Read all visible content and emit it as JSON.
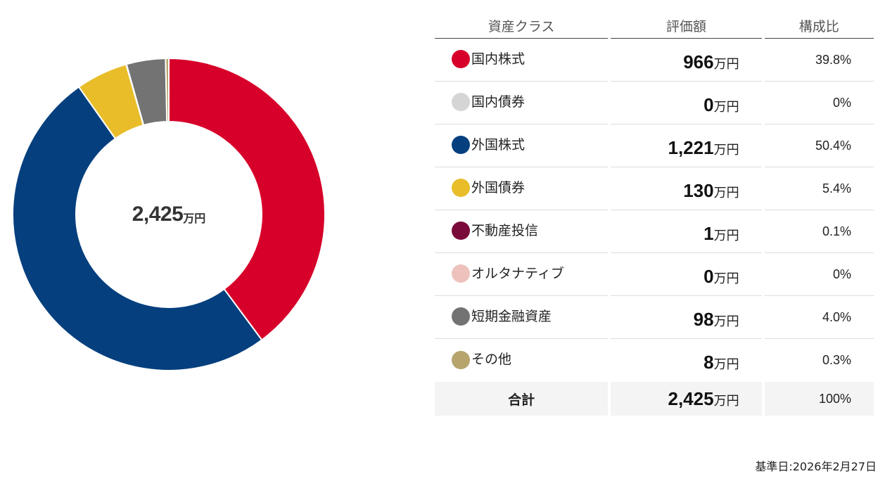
{
  "chart_data": {
    "type": "pie",
    "subtype": "donut",
    "title": "",
    "center_label": {
      "value": "2,425",
      "unit": "万円"
    },
    "unit": "万円",
    "categories": [
      "国内株式",
      "国内債券",
      "外国株式",
      "外国債券",
      "不動産投信",
      "オルタナティブ",
      "短期金融資産",
      "その他"
    ],
    "values": [
      966,
      0,
      1221,
      130,
      1,
      0,
      98,
      8
    ],
    "percentages": [
      39.8,
      0,
      50.4,
      5.4,
      0.1,
      0,
      4.0,
      0.3
    ],
    "colors": [
      "#d7002a",
      "#d5d5d5",
      "#053f7e",
      "#e8bd29",
      "#7a0a3a",
      "#edc2bd",
      "#737373",
      "#b5a46c"
    ],
    "start_angle": "12 o'clock",
    "direction": "clockwise",
    "legend_position": "right (table)"
  },
  "table": {
    "headers": {
      "name": "資産クラス",
      "value": "評価額",
      "ratio": "構成比"
    },
    "rows": [
      {
        "name": "国内株式",
        "value": "966",
        "unit": "万円",
        "ratio": "39.8%",
        "color": "#d7002a"
      },
      {
        "name": "国内債券",
        "value": "0",
        "unit": "万円",
        "ratio": "0%",
        "color": "#d5d5d5"
      },
      {
        "name": "外国株式",
        "value": "1,221",
        "unit": "万円",
        "ratio": "50.4%",
        "color": "#053f7e"
      },
      {
        "name": "外国債券",
        "value": "130",
        "unit": "万円",
        "ratio": "5.4%",
        "color": "#e8bd29"
      },
      {
        "name": "不動産投信",
        "value": "1",
        "unit": "万円",
        "ratio": "0.1%",
        "color": "#7a0a3a"
      },
      {
        "name": "オルタナティブ",
        "value": "0",
        "unit": "万円",
        "ratio": "0%",
        "color": "#edc2bd"
      },
      {
        "name": "短期金融資産",
        "value": "98",
        "unit": "万円",
        "ratio": "4.0%",
        "color": "#737373"
      },
      {
        "name": "その他",
        "value": "8",
        "unit": "万円",
        "ratio": "0.3%",
        "color": "#b5a46c"
      }
    ],
    "total": {
      "label": "合計",
      "value": "2,425",
      "unit": "万円",
      "ratio": "100%"
    }
  },
  "footer": {
    "base_date": "基準日:2026年2月27日"
  }
}
